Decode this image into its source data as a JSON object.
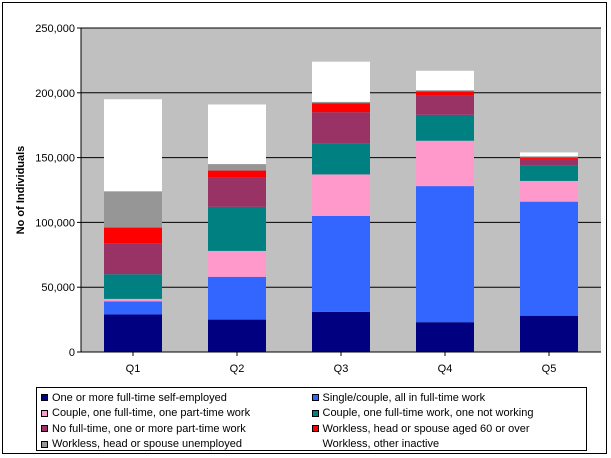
{
  "chart_data": {
    "type": "bar",
    "stacked": true,
    "categories": [
      "Q1",
      "Q2",
      "Q3",
      "Q4",
      "Q5"
    ],
    "ylabel": "No of Individuals",
    "ylim": [
      0,
      250000
    ],
    "yticks": [
      0,
      50000,
      100000,
      150000,
      200000,
      250000
    ],
    "ytick_labels": [
      "0",
      "50,000",
      "100,000",
      "150,000",
      "200,000",
      "250,000"
    ],
    "grid": true,
    "plot_background": "#c0c0c0",
    "legend_position": "bottom",
    "series": [
      {
        "name": "One or more full-time self-employed",
        "color": "#000080",
        "values": [
          29000,
          25000,
          31000,
          23000,
          28000
        ]
      },
      {
        "name": "Single/couple, all in full-time work",
        "color": "#3366ff",
        "values": [
          10000,
          33000,
          74000,
          105000,
          88000
        ]
      },
      {
        "name": "Couple, one full-time, one part-time work",
        "color": "#ff99cc",
        "values": [
          2000,
          20000,
          32000,
          35000,
          16000
        ]
      },
      {
        "name": "Couple, one full-time work, one not working",
        "color": "#008080",
        "values": [
          19000,
          34000,
          24000,
          20000,
          12000
        ]
      },
      {
        "name": "No full-time, one or more part-time work",
        "color": "#993366",
        "values": [
          24000,
          23000,
          24000,
          15000,
          5000
        ]
      },
      {
        "name": "Workless, head or spouse aged 60 or over",
        "color": "#ff0000",
        "values": [
          12000,
          5000,
          7000,
          3000,
          1000
        ]
      },
      {
        "name": "Workless, head or spouse unemployed",
        "color": "#969696",
        "values": [
          28000,
          5000,
          1000,
          1000,
          1000
        ]
      },
      {
        "name": "Workless, other inactive",
        "color": "#ffffff",
        "values": [
          71000,
          46000,
          31000,
          15000,
          3000
        ]
      }
    ]
  }
}
